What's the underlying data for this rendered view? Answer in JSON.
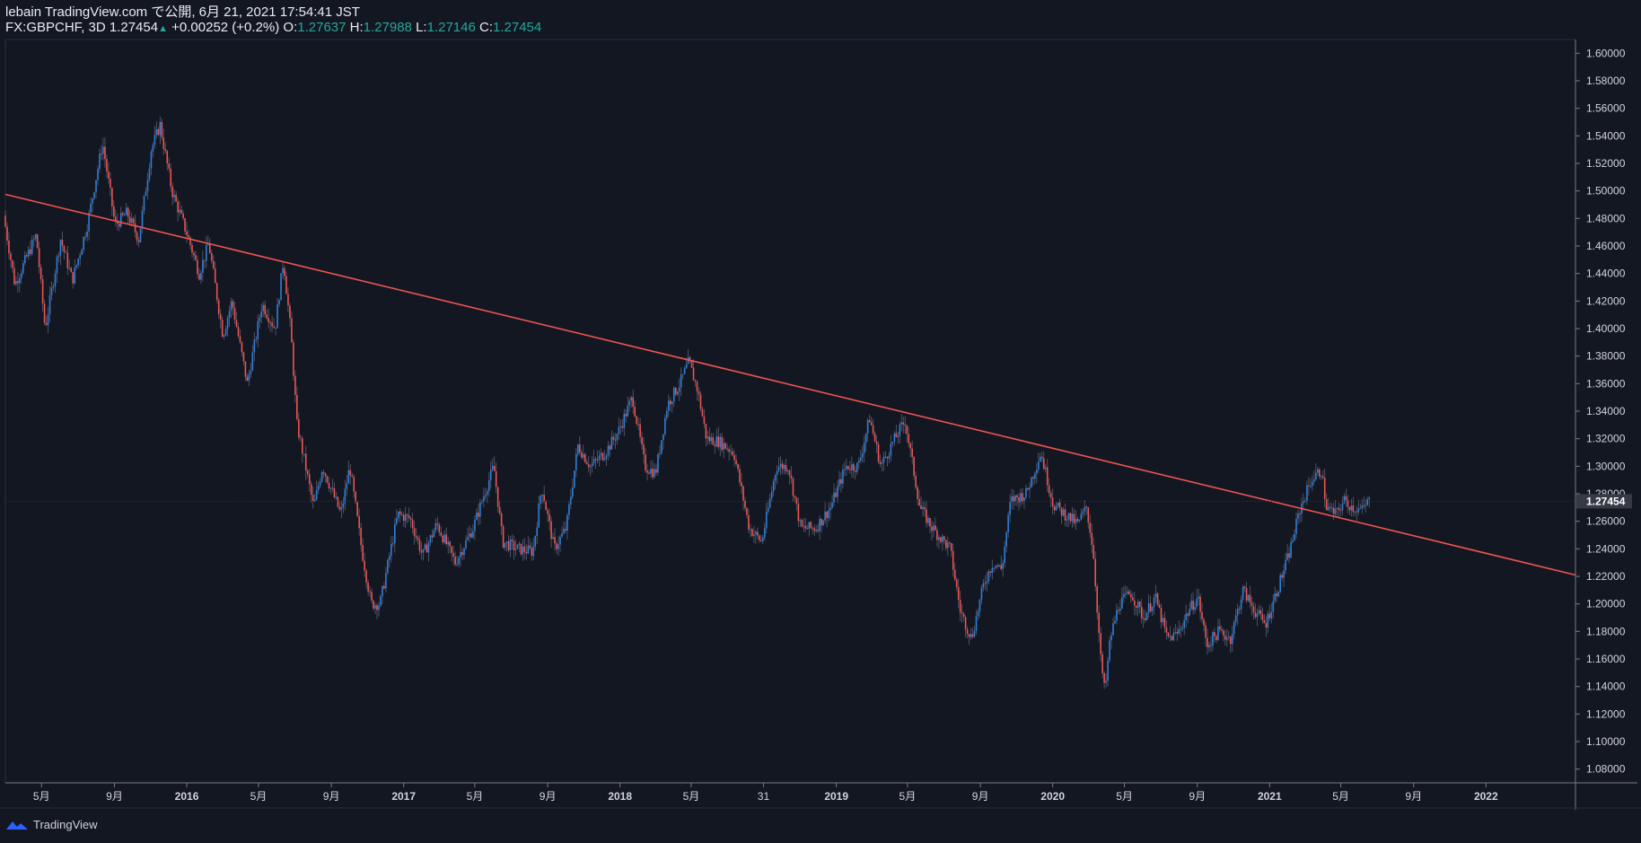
{
  "header": {
    "publisher": "lebain TradingView.com で公開, 6月 21, 2021 17:54:41 JST",
    "symbol": "FX:GBPCHF, 3D",
    "last": "1.27454",
    "change": "+0.00252 (+0.2%)",
    "open_label": "O:",
    "open": "1.27637",
    "high_label": "H:",
    "high": "1.27988",
    "low_label": "L:",
    "low": "1.27146",
    "close_label": "C:",
    "close": "1.27454"
  },
  "footer": {
    "brand": "TradingView",
    "icon": "tradingview-logo-icon"
  },
  "colors": {
    "background": "#131722",
    "up": "#2f7fd8",
    "down": "#ef5350",
    "trendline": "#ef5350",
    "grid": "#1e222d",
    "axis_text": "#d1d4dc",
    "price_label_bg": "#363a45"
  },
  "chart_data": {
    "type": "candlestick",
    "symbol": "FX:GBPCHF",
    "timeframe": "3D",
    "y_axis": {
      "position": "right",
      "ylim": [
        1.07,
        1.61
      ],
      "ticks": [
        "1.60000",
        "1.58000",
        "1.56000",
        "1.54000",
        "1.52000",
        "1.50000",
        "1.48000",
        "1.46000",
        "1.44000",
        "1.42000",
        "1.40000",
        "1.38000",
        "1.36000",
        "1.34000",
        "1.32000",
        "1.30000",
        "1.28000",
        "1.26000",
        "1.24000",
        "1.22000",
        "1.20000",
        "1.18000",
        "1.16000",
        "1.14000",
        "1.12000",
        "1.10000",
        "1.08000"
      ],
      "current_price_label": "1.27454"
    },
    "x_axis": {
      "xlim": [
        "2015-03-01",
        "2022-06-01"
      ],
      "ticks": [
        {
          "label": "5月",
          "date": "2015-05-01"
        },
        {
          "label": "9月",
          "date": "2015-09-01"
        },
        {
          "label": "2016",
          "date": "2016-01-01"
        },
        {
          "label": "5月",
          "date": "2016-05-01"
        },
        {
          "label": "9月",
          "date": "2016-09-01"
        },
        {
          "label": "2017",
          "date": "2017-01-01"
        },
        {
          "label": "5月",
          "date": "2017-05-01"
        },
        {
          "label": "9月",
          "date": "2017-09-01"
        },
        {
          "label": "2018",
          "date": "2018-01-01"
        },
        {
          "label": "5月",
          "date": "2018-05-01"
        },
        {
          "label": "31",
          "date": "2018-08-31"
        },
        {
          "label": "2019",
          "date": "2019-01-01"
        },
        {
          "label": "5月",
          "date": "2019-05-01"
        },
        {
          "label": "9月",
          "date": "2019-09-01"
        },
        {
          "label": "2020",
          "date": "2020-01-01"
        },
        {
          "label": "5月",
          "date": "2020-05-01"
        },
        {
          "label": "9月",
          "date": "2020-09-01"
        },
        {
          "label": "2021",
          "date": "2021-01-01"
        },
        {
          "label": "5月",
          "date": "2021-05-01"
        },
        {
          "label": "9月",
          "date": "2021-09-01"
        },
        {
          "label": "2022",
          "date": "2022-01-01"
        }
      ]
    },
    "trendline": {
      "start": {
        "date": "2015-03-01",
        "price": 1.4975
      },
      "end": {
        "date": "2022-06-01",
        "price": 1.221
      }
    },
    "anchors": [
      {
        "date": "2015-03-01",
        "price": 1.482
      },
      {
        "date": "2015-03-20",
        "price": 1.432
      },
      {
        "date": "2015-04-25",
        "price": 1.468
      },
      {
        "date": "2015-05-10",
        "price": 1.4
      },
      {
        "date": "2015-06-05",
        "price": 1.465
      },
      {
        "date": "2015-06-25",
        "price": 1.435
      },
      {
        "date": "2015-07-20",
        "price": 1.475
      },
      {
        "date": "2015-08-15",
        "price": 1.535
      },
      {
        "date": "2015-09-05",
        "price": 1.475
      },
      {
        "date": "2015-09-25",
        "price": 1.484
      },
      {
        "date": "2015-10-15",
        "price": 1.465
      },
      {
        "date": "2015-11-05",
        "price": 1.53
      },
      {
        "date": "2015-11-20",
        "price": 1.548
      },
      {
        "date": "2015-12-10",
        "price": 1.5
      },
      {
        "date": "2016-01-05",
        "price": 1.468
      },
      {
        "date": "2016-01-25",
        "price": 1.44
      },
      {
        "date": "2016-02-10",
        "price": 1.462
      },
      {
        "date": "2016-03-05",
        "price": 1.395
      },
      {
        "date": "2016-03-20",
        "price": 1.42
      },
      {
        "date": "2016-04-15",
        "price": 1.36
      },
      {
        "date": "2016-05-10",
        "price": 1.418
      },
      {
        "date": "2016-06-01",
        "price": 1.4
      },
      {
        "date": "2016-06-15",
        "price": 1.45
      },
      {
        "date": "2016-06-28",
        "price": 1.395
      },
      {
        "date": "2016-07-08",
        "price": 1.33
      },
      {
        "date": "2016-07-20",
        "price": 1.305
      },
      {
        "date": "2016-08-05",
        "price": 1.27
      },
      {
        "date": "2016-08-20",
        "price": 1.3
      },
      {
        "date": "2016-09-20",
        "price": 1.265
      },
      {
        "date": "2016-10-05",
        "price": 1.3
      },
      {
        "date": "2016-10-25",
        "price": 1.24
      },
      {
        "date": "2016-11-10",
        "price": 1.2
      },
      {
        "date": "2016-11-25",
        "price": 1.2
      },
      {
        "date": "2016-12-25",
        "price": 1.265
      },
      {
        "date": "2017-01-15",
        "price": 1.262
      },
      {
        "date": "2017-02-05",
        "price": 1.235
      },
      {
        "date": "2017-03-01",
        "price": 1.258
      },
      {
        "date": "2017-04-01",
        "price": 1.23
      },
      {
        "date": "2017-05-01",
        "price": 1.255
      },
      {
        "date": "2017-05-20",
        "price": 1.28
      },
      {
        "date": "2017-06-05",
        "price": 1.3
      },
      {
        "date": "2017-06-20",
        "price": 1.245
      },
      {
        "date": "2017-07-15",
        "price": 1.24
      },
      {
        "date": "2017-08-10",
        "price": 1.238
      },
      {
        "date": "2017-08-25",
        "price": 1.285
      },
      {
        "date": "2017-09-15",
        "price": 1.24
      },
      {
        "date": "2017-10-05",
        "price": 1.255
      },
      {
        "date": "2017-10-25",
        "price": 1.315
      },
      {
        "date": "2017-11-15",
        "price": 1.3
      },
      {
        "date": "2017-12-10",
        "price": 1.31
      },
      {
        "date": "2018-01-01",
        "price": 1.325
      },
      {
        "date": "2018-01-25",
        "price": 1.35
      },
      {
        "date": "2018-02-15",
        "price": 1.3
      },
      {
        "date": "2018-03-05",
        "price": 1.295
      },
      {
        "date": "2018-03-25",
        "price": 1.345
      },
      {
        "date": "2018-04-15",
        "price": 1.36
      },
      {
        "date": "2018-04-30",
        "price": 1.376
      },
      {
        "date": "2018-05-15",
        "price": 1.355
      },
      {
        "date": "2018-05-30",
        "price": 1.32
      },
      {
        "date": "2018-06-20",
        "price": 1.318
      },
      {
        "date": "2018-07-15",
        "price": 1.31
      },
      {
        "date": "2018-08-10",
        "price": 1.255
      },
      {
        "date": "2018-08-31",
        "price": 1.245
      },
      {
        "date": "2018-09-25",
        "price": 1.3
      },
      {
        "date": "2018-10-15",
        "price": 1.3
      },
      {
        "date": "2018-11-05",
        "price": 1.255
      },
      {
        "date": "2018-11-30",
        "price": 1.255
      },
      {
        "date": "2018-12-25",
        "price": 1.27
      },
      {
        "date": "2019-01-20",
        "price": 1.3
      },
      {
        "date": "2019-02-10",
        "price": 1.3
      },
      {
        "date": "2019-03-01",
        "price": 1.335
      },
      {
        "date": "2019-03-20",
        "price": 1.3
      },
      {
        "date": "2019-04-10",
        "price": 1.318
      },
      {
        "date": "2019-04-30",
        "price": 1.333
      },
      {
        "date": "2019-05-25",
        "price": 1.27
      },
      {
        "date": "2019-06-15",
        "price": 1.255
      },
      {
        "date": "2019-07-15",
        "price": 1.24
      },
      {
        "date": "2019-08-01",
        "price": 1.195
      },
      {
        "date": "2019-08-20",
        "price": 1.175
      },
      {
        "date": "2019-09-10",
        "price": 1.215
      },
      {
        "date": "2019-09-25",
        "price": 1.23
      },
      {
        "date": "2019-10-10",
        "price": 1.225
      },
      {
        "date": "2019-10-25",
        "price": 1.275
      },
      {
        "date": "2019-11-20",
        "price": 1.28
      },
      {
        "date": "2019-12-15",
        "price": 1.31
      },
      {
        "date": "2020-01-05",
        "price": 1.272
      },
      {
        "date": "2020-01-25",
        "price": 1.265
      },
      {
        "date": "2020-02-15",
        "price": 1.258
      },
      {
        "date": "2020-03-01",
        "price": 1.27
      },
      {
        "date": "2020-03-12",
        "price": 1.24
      },
      {
        "date": "2020-03-25",
        "price": 1.16
      },
      {
        "date": "2020-04-01",
        "price": 1.135
      },
      {
        "date": "2020-04-10",
        "price": 1.175
      },
      {
        "date": "2020-04-25",
        "price": 1.2
      },
      {
        "date": "2020-05-15",
        "price": 1.208
      },
      {
        "date": "2020-06-05",
        "price": 1.19
      },
      {
        "date": "2020-06-25",
        "price": 1.205
      },
      {
        "date": "2020-07-15",
        "price": 1.175
      },
      {
        "date": "2020-08-01",
        "price": 1.178
      },
      {
        "date": "2020-08-20",
        "price": 1.195
      },
      {
        "date": "2020-09-05",
        "price": 1.205
      },
      {
        "date": "2020-09-20",
        "price": 1.17
      },
      {
        "date": "2020-10-10",
        "price": 1.18
      },
      {
        "date": "2020-10-30",
        "price": 1.175
      },
      {
        "date": "2020-11-20",
        "price": 1.21
      },
      {
        "date": "2020-12-10",
        "price": 1.195
      },
      {
        "date": "2020-12-28",
        "price": 1.185
      },
      {
        "date": "2021-01-15",
        "price": 1.208
      },
      {
        "date": "2021-02-05",
        "price": 1.235
      },
      {
        "date": "2021-02-25",
        "price": 1.27
      },
      {
        "date": "2021-03-15",
        "price": 1.29
      },
      {
        "date": "2021-04-01",
        "price": 1.297
      },
      {
        "date": "2021-04-10",
        "price": 1.27
      },
      {
        "date": "2021-04-25",
        "price": 1.265
      },
      {
        "date": "2021-05-10",
        "price": 1.275
      },
      {
        "date": "2021-05-25",
        "price": 1.27
      },
      {
        "date": "2021-06-10",
        "price": 1.268
      },
      {
        "date": "2021-06-19",
        "price": 1.2745
      }
    ]
  }
}
